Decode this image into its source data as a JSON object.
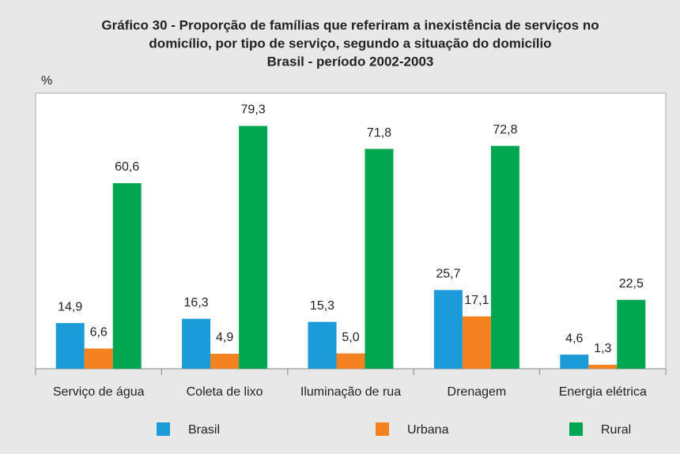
{
  "chart_data": {
    "type": "bar",
    "title": [
      "Gráfico 30 - Proporção de famílias que referiram a inexistência de serviços no",
      "domicílio, por tipo de serviço, segundo a situação do domicílio",
      "Brasil - período 2002-2003"
    ],
    "y_label": "%",
    "categories": [
      "Serviço de água",
      "Coleta de lixo",
      "Iluminação de rua",
      "Drenagem",
      "Energia elétrica"
    ],
    "series": [
      {
        "name": "Brasil",
        "color": "#1a9ad6",
        "values": [
          14.9,
          16.3,
          15.3,
          25.7,
          4.6
        ],
        "value_labels": [
          "14,9",
          "16,3",
          "15,3",
          "25,7",
          "4,6"
        ]
      },
      {
        "name": "Urbana",
        "color": "#f58220",
        "values": [
          6.6,
          4.9,
          5.0,
          17.1,
          1.3
        ],
        "value_labels": [
          "6,6",
          "4,9",
          "5,0",
          "17,1",
          "1,3"
        ]
      },
      {
        "name": "Rural",
        "color": "#00a650",
        "values": [
          60.6,
          79.3,
          71.8,
          72.8,
          22.5
        ],
        "value_labels": [
          "60,6",
          "79,3",
          "71,8",
          "72,8",
          "22,5"
        ]
      }
    ],
    "ylim": [
      0,
      90
    ],
    "legend": "bottom"
  }
}
